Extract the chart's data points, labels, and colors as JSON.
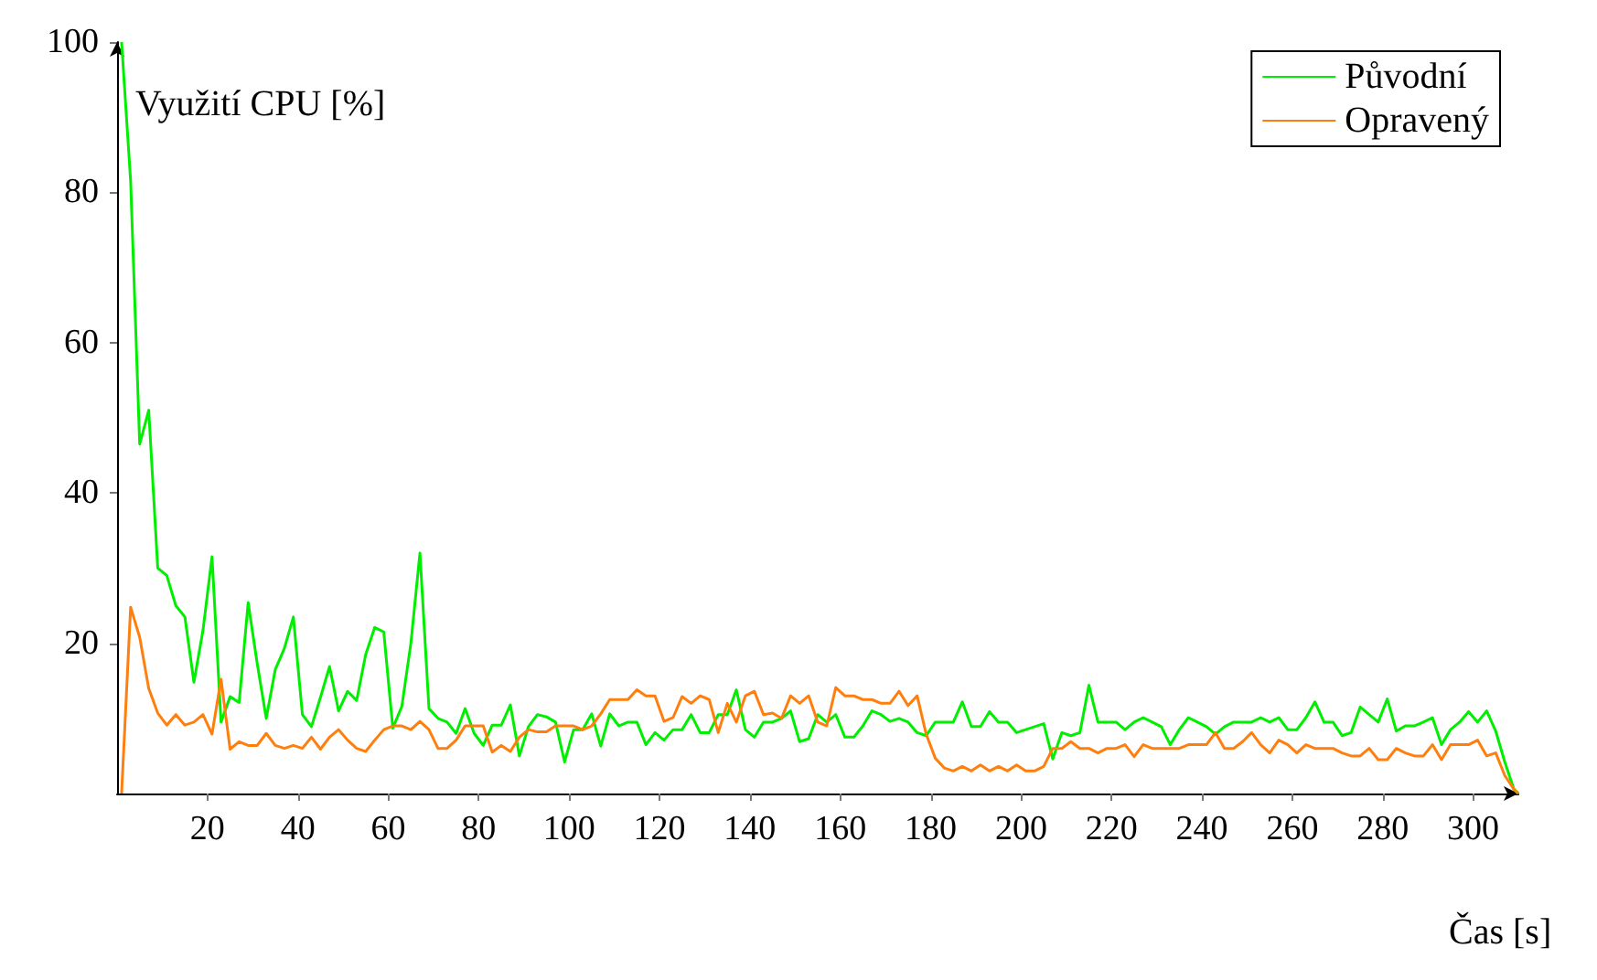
{
  "chart_data": {
    "type": "line",
    "ylabel": "Využití CPU [%]",
    "xlabel": "Čas [s]",
    "x": [
      1,
      3,
      5,
      7,
      9,
      11,
      13,
      15,
      17,
      19,
      21,
      23,
      25,
      27,
      29,
      31,
      33,
      35,
      37,
      39,
      41,
      43,
      45,
      47,
      49,
      51,
      53,
      55,
      57,
      59,
      61,
      63,
      65,
      67,
      69,
      71,
      73,
      75,
      77,
      79,
      81,
      83,
      85,
      87,
      89,
      91,
      93,
      95,
      97,
      99,
      101,
      103,
      105,
      107,
      109,
      111,
      113,
      115,
      117,
      119,
      121,
      123,
      125,
      127,
      129,
      131,
      133,
      135,
      137,
      139,
      141,
      143,
      145,
      147,
      149,
      151,
      153,
      155,
      157,
      159,
      161,
      163,
      165,
      167,
      169,
      171,
      173,
      175,
      177,
      179,
      181,
      183,
      185,
      187,
      189,
      191,
      193,
      195,
      197,
      199,
      201,
      203,
      205,
      207,
      209,
      211,
      213,
      215,
      217,
      219,
      221,
      223,
      225,
      227,
      229,
      231,
      233,
      235,
      237,
      239,
      241,
      243,
      245,
      247,
      249,
      251,
      253,
      255,
      257,
      259,
      261,
      263,
      265,
      267,
      269,
      271,
      273,
      275,
      277,
      279,
      281,
      283,
      285,
      287,
      289,
      291,
      293,
      295,
      297,
      299,
      301,
      303,
      305,
      307,
      309,
      310
    ],
    "series": [
      {
        "name": "Původní",
        "color": "#00ee00",
        "values": [
          100,
          81.5,
          46.5,
          51,
          30,
          29,
          25,
          23.5,
          14.8,
          21.7,
          31.5,
          9.5,
          12.9,
          12.1,
          25.4,
          17.3,
          10,
          16.5,
          19.3,
          23.5,
          10.5,
          8.9,
          12.8,
          16.9,
          11,
          13.6,
          12.4,
          18.5,
          22.1,
          21.5,
          8.7,
          11.6,
          20,
          32,
          11.3,
          10,
          9.5,
          8,
          11.3,
          8,
          6.4,
          9.1,
          9.1,
          11.8,
          5,
          8.9,
          10.5,
          10.2,
          9.5,
          4.2,
          8.5,
          8.5,
          10.6,
          6.3,
          10.6,
          9,
          9.5,
          9.5,
          6.5,
          8.1,
          7.1,
          8.5,
          8.5,
          10.5,
          8.1,
          8.1,
          10.5,
          10.5,
          13.8,
          8.5,
          7.5,
          9.5,
          9.5,
          10,
          11,
          6.9,
          7.3,
          10.5,
          9.5,
          10.5,
          7.5,
          7.5,
          9,
          11,
          10.5,
          9.6,
          10,
          9.5,
          8.1,
          7.7,
          9.5,
          9.5,
          9.5,
          12.2,
          8.9,
          8.9,
          10.9,
          9.5,
          9.5,
          8.1,
          8.5,
          8.9,
          9.3,
          4.6,
          8.1,
          7.7,
          8.1,
          14.4,
          9.5,
          9.5,
          9.5,
          8.5,
          9.5,
          10.1,
          9.5,
          8.9,
          6.5,
          8.5,
          10.1,
          9.5,
          8.9,
          7.9,
          8.9,
          9.5,
          9.5,
          9.5,
          10.1,
          9.5,
          10.1,
          8.5,
          8.5,
          10.1,
          12.2,
          9.5,
          9.5,
          7.7,
          8.1,
          11.5,
          10.5,
          9.5,
          12.6,
          8.3,
          9,
          9,
          9.5,
          10.1,
          6.5,
          8.5,
          9.5,
          10.9,
          9.5,
          11,
          8.3,
          4.2,
          0.6,
          0
        ]
      },
      {
        "name": "Opravený",
        "color": "#ff7f0e",
        "values": [
          0,
          24.8,
          20.8,
          14,
          10.7,
          9.1,
          10.5,
          9.1,
          9.5,
          10.5,
          7.9,
          15.2,
          5.9,
          6.9,
          6.4,
          6.4,
          8,
          6.4,
          6,
          6.4,
          6,
          7.5,
          5.9,
          7.5,
          8.5,
          7.1,
          6,
          5.6,
          7.1,
          8.5,
          9,
          9,
          8.5,
          9.6,
          8.5,
          6,
          6,
          7.1,
          9,
          9,
          9,
          5.5,
          6.4,
          5.6,
          7.5,
          8.5,
          8.2,
          8.2,
          9,
          9,
          9,
          8.5,
          9,
          10.6,
          12.5,
          12.5,
          12.5,
          13.8,
          13,
          13,
          9.6,
          10.1,
          12.9,
          12,
          13,
          12.5,
          8.1,
          12,
          9.5,
          13,
          13.6,
          10.5,
          10.7,
          10,
          13,
          12,
          13,
          9.5,
          9,
          14.1,
          13,
          13,
          12.5,
          12.5,
          12,
          12,
          13.6,
          11.7,
          13,
          7.9,
          4.7,
          3.4,
          3,
          3.6,
          3,
          3.8,
          3,
          3.6,
          3,
          3.8,
          3,
          3,
          3.6,
          6,
          6,
          6.9,
          6,
          6,
          5.4,
          6,
          6,
          6.5,
          4.9,
          6.5,
          6,
          6,
          6,
          6,
          6.5,
          6.5,
          6.5,
          8.1,
          6,
          6,
          6.9,
          8.1,
          6.5,
          5.4,
          7.1,
          6.5,
          5.4,
          6.5,
          6,
          6,
          6,
          5.4,
          5,
          5,
          6,
          4.5,
          4.5,
          6,
          5.4,
          5,
          5,
          6.5,
          4.5,
          6.5,
          6.5,
          6.5,
          7.1,
          5,
          5.4,
          2.4,
          0.6,
          0
        ]
      }
    ],
    "xlim": [
      0,
      310
    ],
    "xticks": [
      20,
      40,
      60,
      80,
      100,
      120,
      140,
      160,
      180,
      200,
      220,
      240,
      260,
      280,
      300
    ],
    "ylim": [
      0,
      100
    ],
    "yticks": [
      20,
      40,
      60,
      80,
      100
    ],
    "legend": "top right",
    "marker": "none",
    "line_style": "solid",
    "grid": false
  }
}
